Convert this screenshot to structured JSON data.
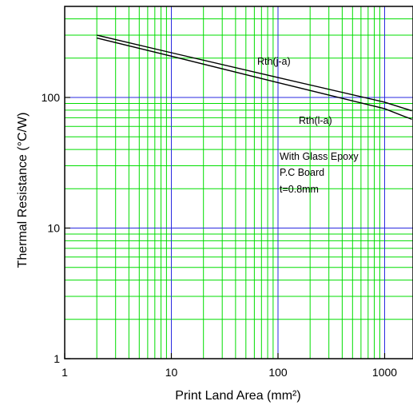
{
  "chart_data": {
    "type": "line",
    "title": "",
    "xlabel": "Print Land Area    (mm²)",
    "ylabel": "Thermal Resistance    (°C/W)",
    "x_scale": "log",
    "y_scale": "log",
    "xlim": [
      1,
      1800
    ],
    "ylim": [
      1,
      400
    ],
    "x_ticks": [
      1,
      10,
      100,
      1000
    ],
    "x_tick_labels": [
      "1",
      "10",
      "100",
      "1000"
    ],
    "y_ticks": [
      1,
      10,
      100
    ],
    "y_tick_labels": [
      "1",
      "10",
      "100"
    ],
    "grid": true,
    "colors": {
      "minor_grid": "#00dd00",
      "major_grid": "#2a2ae0",
      "series": "#000000",
      "frame": "#000000"
    },
    "series": [
      {
        "name": "Rth(j-a)",
        "x": [
          2,
          10,
          100,
          1000,
          1800
        ],
        "y": [
          300,
          220,
          142,
          92,
          79
        ]
      },
      {
        "name": "Rth(l-a)",
        "x": [
          2,
          10,
          100,
          1000,
          1800
        ],
        "y": [
          285,
          207,
          130,
          82,
          68
        ]
      }
    ],
    "annotations": {
      "condition_lines": [
        "With Glass Epoxy",
        "P.C Board",
        "t=0.8mm"
      ]
    }
  }
}
